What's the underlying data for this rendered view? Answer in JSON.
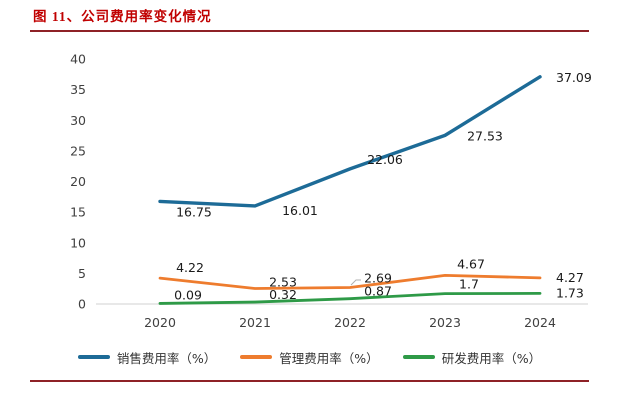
{
  "figure": {
    "title": "图 11、公司费用率变化情况"
  },
  "colors": {
    "title": "#c00000",
    "rule": "#8e2126",
    "axis_line": "#d9d9d9",
    "tick_text": "#404040",
    "data_label_text": "#1a1a1a"
  },
  "chart_data": {
    "type": "line",
    "title": "公司费用率变化情况",
    "categories": [
      "2020",
      "2021",
      "2022",
      "2023",
      "2024"
    ],
    "series": [
      {
        "name": "销售费用率（%）",
        "color": "#1d6b97",
        "values": [
          16.75,
          16.01,
          22.06,
          27.53,
          37.09
        ],
        "labels": [
          "16.75",
          "16.01",
          "22.06",
          "27.53",
          "37.09"
        ]
      },
      {
        "name": "管理费用率（%）",
        "color": "#ee7c2e",
        "values": [
          4.22,
          2.53,
          2.69,
          4.67,
          4.27
        ],
        "labels": [
          "4.22",
          "2.53",
          "2.69",
          "4.67",
          "4.27"
        ]
      },
      {
        "name": "研发费用率（%）",
        "color": "#2e9a47",
        "values": [
          0.09,
          0.32,
          0.87,
          1.7,
          1.73
        ],
        "labels": [
          "0.09",
          "0.32",
          "0.87",
          "1.7",
          "1.73"
        ]
      }
    ],
    "ylim": [
      0,
      40
    ],
    "yticks": [
      0,
      5,
      10,
      15,
      20,
      25,
      30,
      35,
      40
    ],
    "grid": false,
    "legend_position": "bottom",
    "xlabel": "",
    "ylabel": ""
  }
}
